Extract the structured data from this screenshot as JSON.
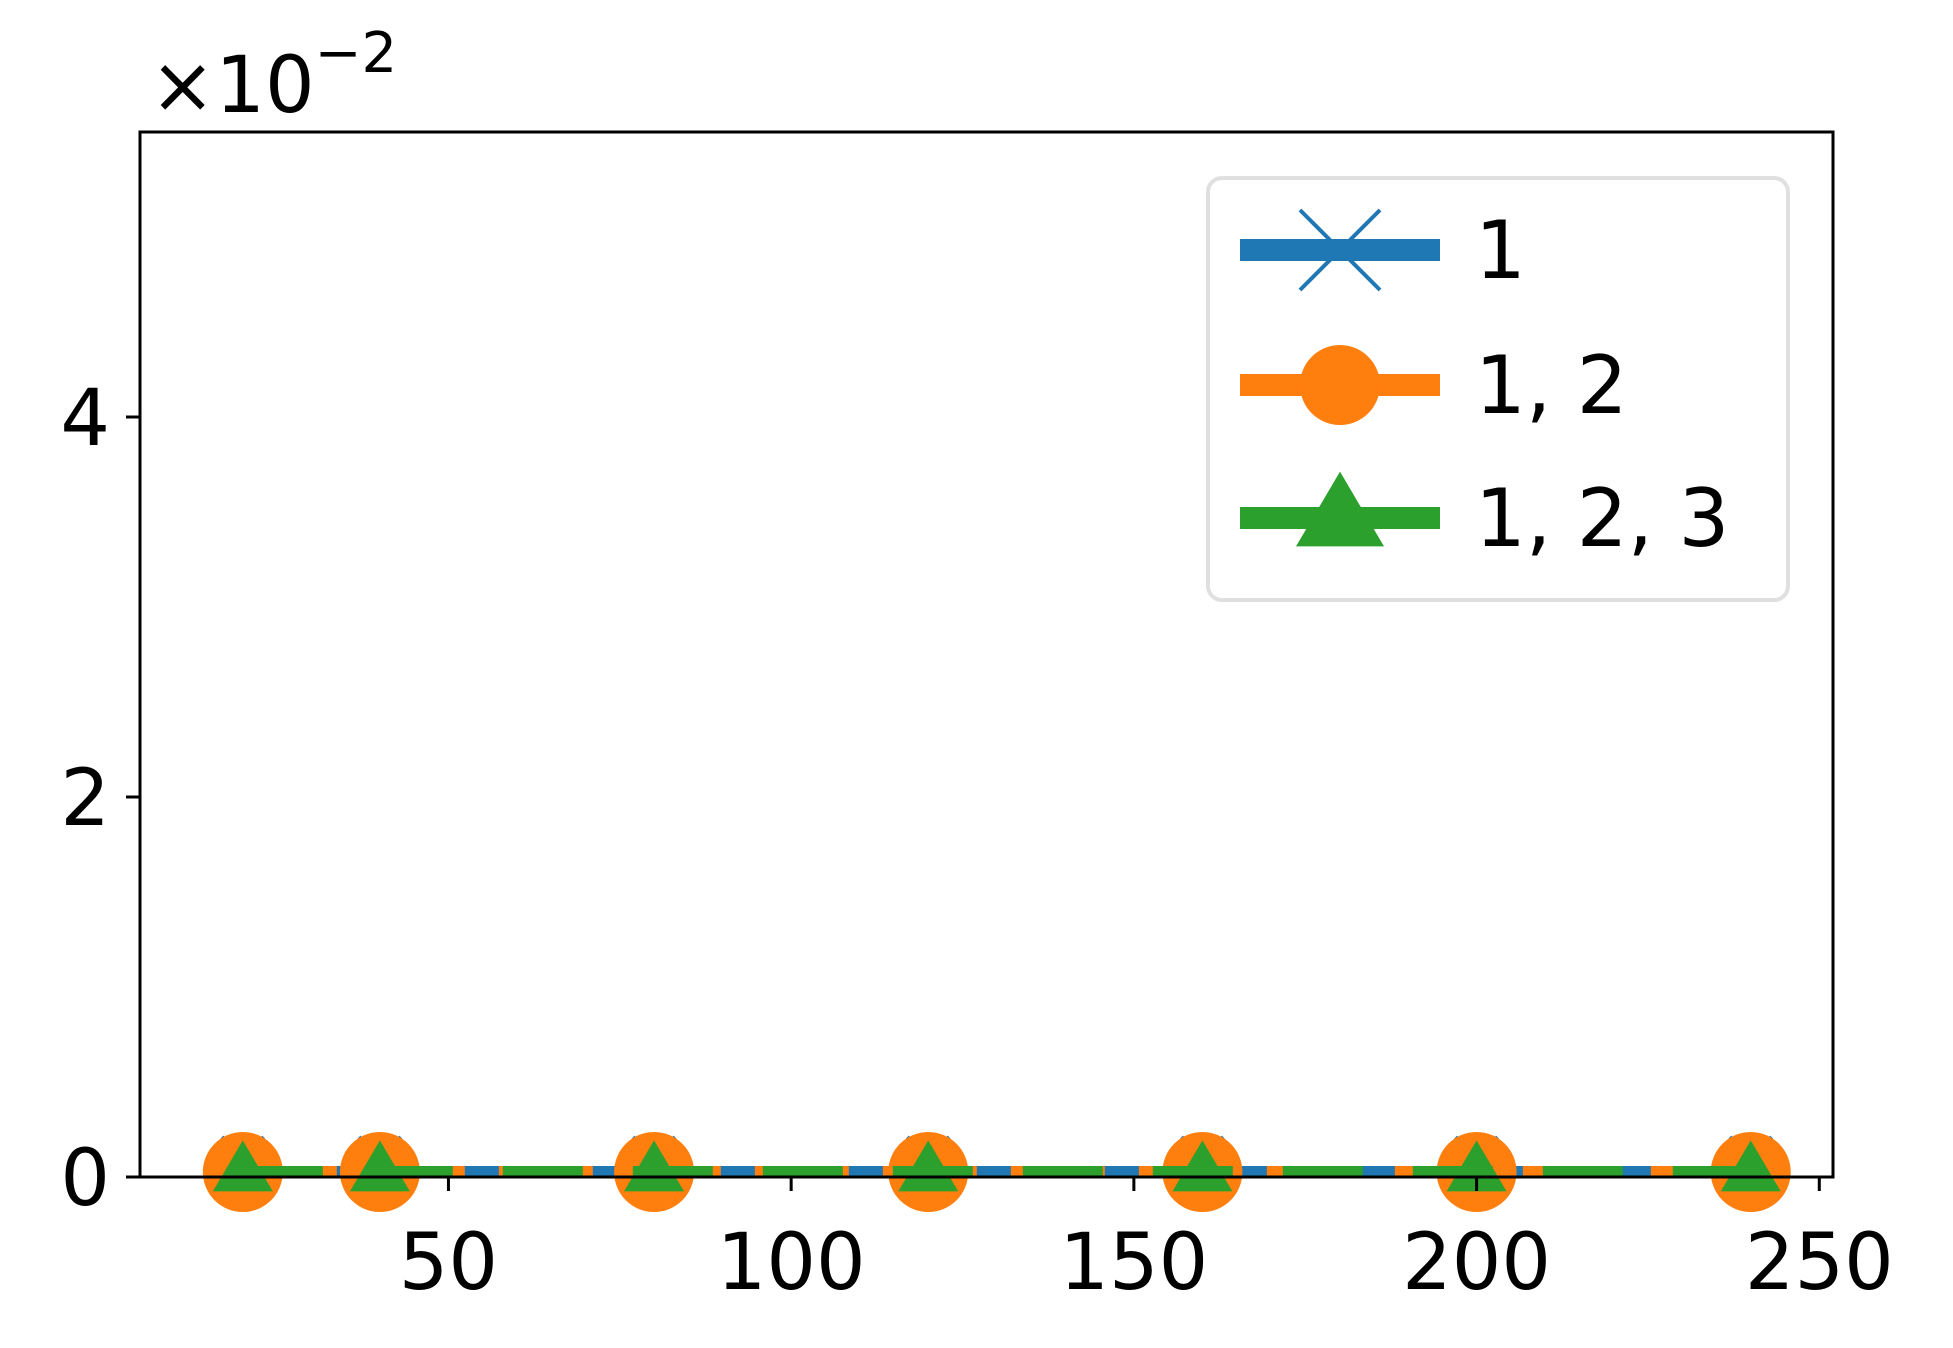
{
  "chart_data": {
    "type": "line",
    "title": "",
    "xlabel": "",
    "ylabel": "",
    "y_offset_text": "×10",
    "y_offset_exponent": "−2",
    "xlim": [
      5,
      252
    ],
    "ylim": [
      0,
      5.5
    ],
    "xticks": [
      50,
      100,
      150,
      200,
      250
    ],
    "xtick_labels": [
      "50",
      "100",
      "150",
      "200",
      "250"
    ],
    "yticks": [
      0,
      2,
      4
    ],
    "ytick_labels": [
      "0",
      "2",
      "4"
    ],
    "grid": false,
    "legend_position": "top-right",
    "series": [
      {
        "name": "1",
        "color": "#1f77b4",
        "marker": "x",
        "x": [
          20,
          40,
          80,
          120,
          160,
          200,
          240
        ],
        "y": [
          0,
          0,
          0,
          0,
          0,
          0,
          0
        ]
      },
      {
        "name": "1, 2",
        "color": "#ff7f0e",
        "marker": "circle",
        "x": [
          20,
          40,
          80,
          120,
          160,
          200,
          240
        ],
        "y": [
          0,
          0,
          0,
          0,
          0,
          0,
          0
        ]
      },
      {
        "name": "1, 2, 3",
        "color": "#2ca02c",
        "marker": "triangle-up",
        "x": [
          20,
          40,
          80,
          120,
          160,
          200,
          240
        ],
        "y": [
          0,
          0,
          0,
          0,
          0,
          0,
          0
        ]
      }
    ]
  }
}
